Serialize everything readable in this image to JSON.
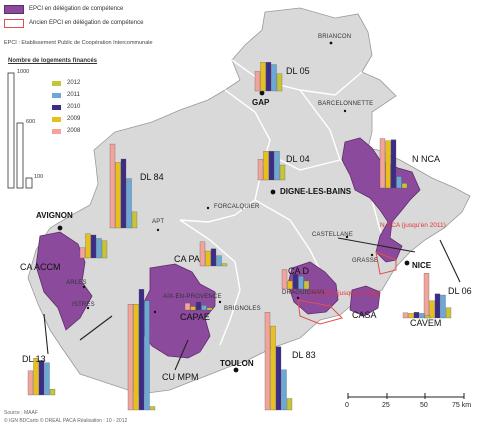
{
  "legend": {
    "epci_label": "EPCI en délégation de compétence",
    "ancien_label": "Ancien EPCI en délégation de compétence",
    "epci_definition": "EPCI : Etablissement Public de Coopération Intercommunale",
    "nb_title": "Nombre de logements financés",
    "scale_values": [
      "1000",
      "600",
      "100"
    ],
    "years": [
      "2012",
      "2011",
      "2010",
      "2009",
      "2008"
    ],
    "year_colors": [
      "#c8c43a",
      "#6aa8d8",
      "#3d2c86",
      "#e8c01e",
      "#f2a39a"
    ]
  },
  "cities": {
    "briancon": "BRIANCON",
    "gap": "GAP",
    "barcelonnette": "BARCELONNETTE",
    "digne": "DIGNE-LES-BAINS",
    "avignon": "AVIGNON",
    "forcalquier": "FORCALQUIER",
    "apt": "APT",
    "castellane": "CASTELLANE",
    "grasse": "GRASSE",
    "nice": "NICE",
    "arles": "ARLES",
    "istres": "ISTRES",
    "aix": "AIX-EN-PROVENCE",
    "brignoles": "BRIGNOLES",
    "draguignan": "DRAGUIGNAN",
    "toulon": "TOULON"
  },
  "labels": {
    "dl05": "DL 05",
    "dl04": "DL 04",
    "dl84": "DL 84",
    "dl06": "DL 06",
    "dl13": "DL 13",
    "dl83": "DL 83",
    "nnca": "N NCA",
    "ca_accm": "CA ACCM",
    "ca_pa": "CA PA",
    "ca_d": "CA D",
    "capae": "CAPAE",
    "cu_mpm": "CU MPM",
    "casa": "CASA",
    "cavem": "CAVEM"
  },
  "red_notes": {
    "nca": "N NCA (jusqu'en 2011)",
    "cad": "CA CSD (jusqu'en 2011)"
  },
  "scale_bar": {
    "ticks": [
      "0",
      "25",
      "50",
      "75 km"
    ]
  },
  "source": [
    "Source : MAAF",
    "© IGN BDCarto   © DREAL PACA  Réalisation : 10 - 2012"
  ],
  "chart_data": {
    "type": "bar",
    "title": "Nombre de logements financés",
    "categories": [
      "2012",
      "2011",
      "2010",
      "2009",
      "2008"
    ],
    "series": [
      {
        "name": "DL 05",
        "values": [
          150,
          230,
          250,
          250,
          170
        ]
      },
      {
        "name": "DL 04",
        "values": [
          130,
          250,
          250,
          250,
          180
        ]
      },
      {
        "name": "DL 84",
        "values": [
          140,
          430,
          600,
          570,
          730
        ]
      },
      {
        "name": "N NCA",
        "values": [
          40,
          100,
          420,
          410,
          430
        ]
      },
      {
        "name": "CA ACCM",
        "values": [
          150,
          170,
          200,
          210,
          90
        ]
      },
      {
        "name": "CA PA",
        "values": [
          20,
          90,
          150,
          130,
          210
        ]
      },
      {
        "name": "CA D",
        "values": [
          70,
          110,
          130,
          70,
          170
        ]
      },
      {
        "name": "CAPAE",
        "values": [
          20,
          40,
          70,
          30,
          60
        ]
      },
      {
        "name": "CU MPM",
        "values": [
          30,
          950,
          1050,
          920,
          920
        ]
      },
      {
        "name": "DL 13",
        "values": [
          50,
          280,
          300,
          320,
          210
        ]
      },
      {
        "name": "DL 83",
        "values": [
          100,
          350,
          550,
          730,
          850
        ]
      },
      {
        "name": "DL 06",
        "values": [
          90,
          200,
          210,
          150,
          390
        ]
      },
      {
        "name": "CAVEM",
        "values": [
          20,
          40,
          50,
          40,
          45
        ]
      }
    ]
  }
}
